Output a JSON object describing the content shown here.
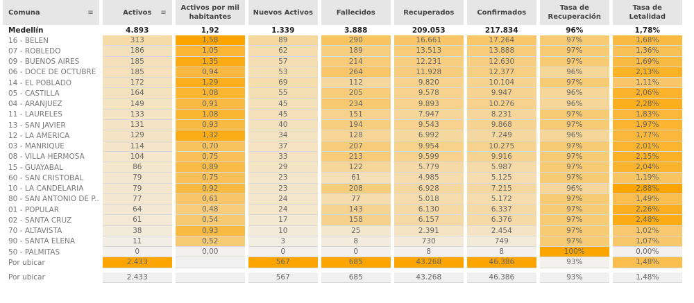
{
  "columns": [
    "Comuna",
    "Activos",
    "Activos por mil habitantes",
    "Nuevos Activos",
    "Fallecidos",
    "Recuperados",
    "Confirmados",
    "Tasa de Recuperación",
    "Tasa de Letalidad"
  ],
  "sort_icon": "sort-icon",
  "colors": {
    "scale_low": "#f2f1ee",
    "scale_high": "#fca500",
    "header_bg": "#e6e6e6"
  },
  "total": {
    "name": "Medellín",
    "values": [
      "4.893",
      "1,92",
      "1.339",
      "3.888",
      "209.053",
      "217.834",
      "96%",
      "1,78%"
    ]
  },
  "rows": [
    {
      "name": "16 - BELEN",
      "values": [
        "313",
        "1,58",
        "89",
        "290",
        "16.661",
        "17.264",
        "97%",
        "1,68%"
      ]
    },
    {
      "name": "07 - ROBLEDO",
      "values": [
        "186",
        "1,05",
        "62",
        "189",
        "13.513",
        "13.888",
        "97%",
        "1,36%"
      ]
    },
    {
      "name": "09 - BUENOS AIRES",
      "values": [
        "185",
        "1,35",
        "57",
        "214",
        "12.231",
        "12.630",
        "97%",
        "1,69%"
      ]
    },
    {
      "name": "06 - DOCE DE OCTUBRE",
      "values": [
        "185",
        "0,94",
        "53",
        "264",
        "11.928",
        "12.377",
        "96%",
        "2,13%"
      ]
    },
    {
      "name": "14 - EL POBLADO",
      "values": [
        "172",
        "1,29",
        "69",
        "112",
        "9.820",
        "10.104",
        "97%",
        "1,11%"
      ]
    },
    {
      "name": "05 - CASTILLA",
      "values": [
        "164",
        "1,08",
        "55",
        "205",
        "9.578",
        "9.947",
        "96%",
        "2,06%"
      ]
    },
    {
      "name": "04 - ARANJUEZ",
      "values": [
        "149",
        "0,91",
        "45",
        "234",
        "9.893",
        "10.276",
        "96%",
        "2,28%"
      ]
    },
    {
      "name": "11 - LAURELES",
      "values": [
        "133",
        "1,08",
        "45",
        "151",
        "7.947",
        "8.231",
        "97%",
        "1,83%"
      ]
    },
    {
      "name": "13 - SAN JAVIER",
      "values": [
        "131",
        "0,93",
        "40",
        "194",
        "9.543",
        "9.868",
        "97%",
        "1,97%"
      ]
    },
    {
      "name": "12 - LA AMERICA",
      "values": [
        "129",
        "1,32",
        "34",
        "128",
        "6.992",
        "7.249",
        "96%",
        "1,77%"
      ]
    },
    {
      "name": "03 - MANRIQUE",
      "values": [
        "114",
        "0,70",
        "37",
        "207",
        "9.954",
        "10.275",
        "97%",
        "2,01%"
      ]
    },
    {
      "name": "08 - VILLA HERMOSA",
      "values": [
        "104",
        "0,75",
        "33",
        "213",
        "9.599",
        "9.916",
        "97%",
        "2,15%"
      ]
    },
    {
      "name": "15 - GUAYABAL",
      "values": [
        "86",
        "0,89",
        "29",
        "122",
        "5.779",
        "5.987",
        "97%",
        "2,04%"
      ]
    },
    {
      "name": "60 - SAN CRISTOBAL",
      "values": [
        "79",
        "0,75",
        "23",
        "61",
        "4.985",
        "5.125",
        "97%",
        "1,19%"
      ]
    },
    {
      "name": "10 - LA CANDELARIA",
      "values": [
        "79",
        "0,92",
        "23",
        "208",
        "6.928",
        "7.215",
        "96%",
        "2,88%"
      ]
    },
    {
      "name": "80 - SAN ANTONIO DE P..",
      "values": [
        "77",
        "0,61",
        "24",
        "77",
        "5.018",
        "5.172",
        "97%",
        "1,49%"
      ]
    },
    {
      "name": "01 - POPULAR",
      "values": [
        "64",
        "0,48",
        "24",
        "143",
        "6.130",
        "6.337",
        "97%",
        "2,26%"
      ]
    },
    {
      "name": "02 - SANTA CRUZ",
      "values": [
        "61",
        "0,54",
        "17",
        "158",
        "6.157",
        "6.376",
        "97%",
        "2,48%"
      ]
    },
    {
      "name": "70 - ALTAVISTA",
      "values": [
        "38",
        "0,93",
        "10",
        "25",
        "2.391",
        "2.454",
        "97%",
        "1,02%"
      ]
    },
    {
      "name": "90 - SANTA ELENA",
      "values": [
        "11",
        "0,52",
        "3",
        "8",
        "730",
        "749",
        "97%",
        "1,07%"
      ]
    },
    {
      "name": "50 - PALMITAS",
      "values": [
        "0",
        "0,00",
        "0",
        "0",
        "8",
        "8",
        "100%",
        "0,00%"
      ]
    },
    {
      "name": "Por ubicar",
      "values": [
        "2.433",
        "",
        "567",
        "685",
        "43.268",
        "46.386",
        "93%",
        "1,48%"
      ]
    }
  ],
  "footer": {
    "name": "Por ubicar",
    "values": [
      "2.433",
      "",
      "567",
      "685",
      "43.268",
      "46.386",
      "93%",
      "1,48%"
    ]
  }
}
